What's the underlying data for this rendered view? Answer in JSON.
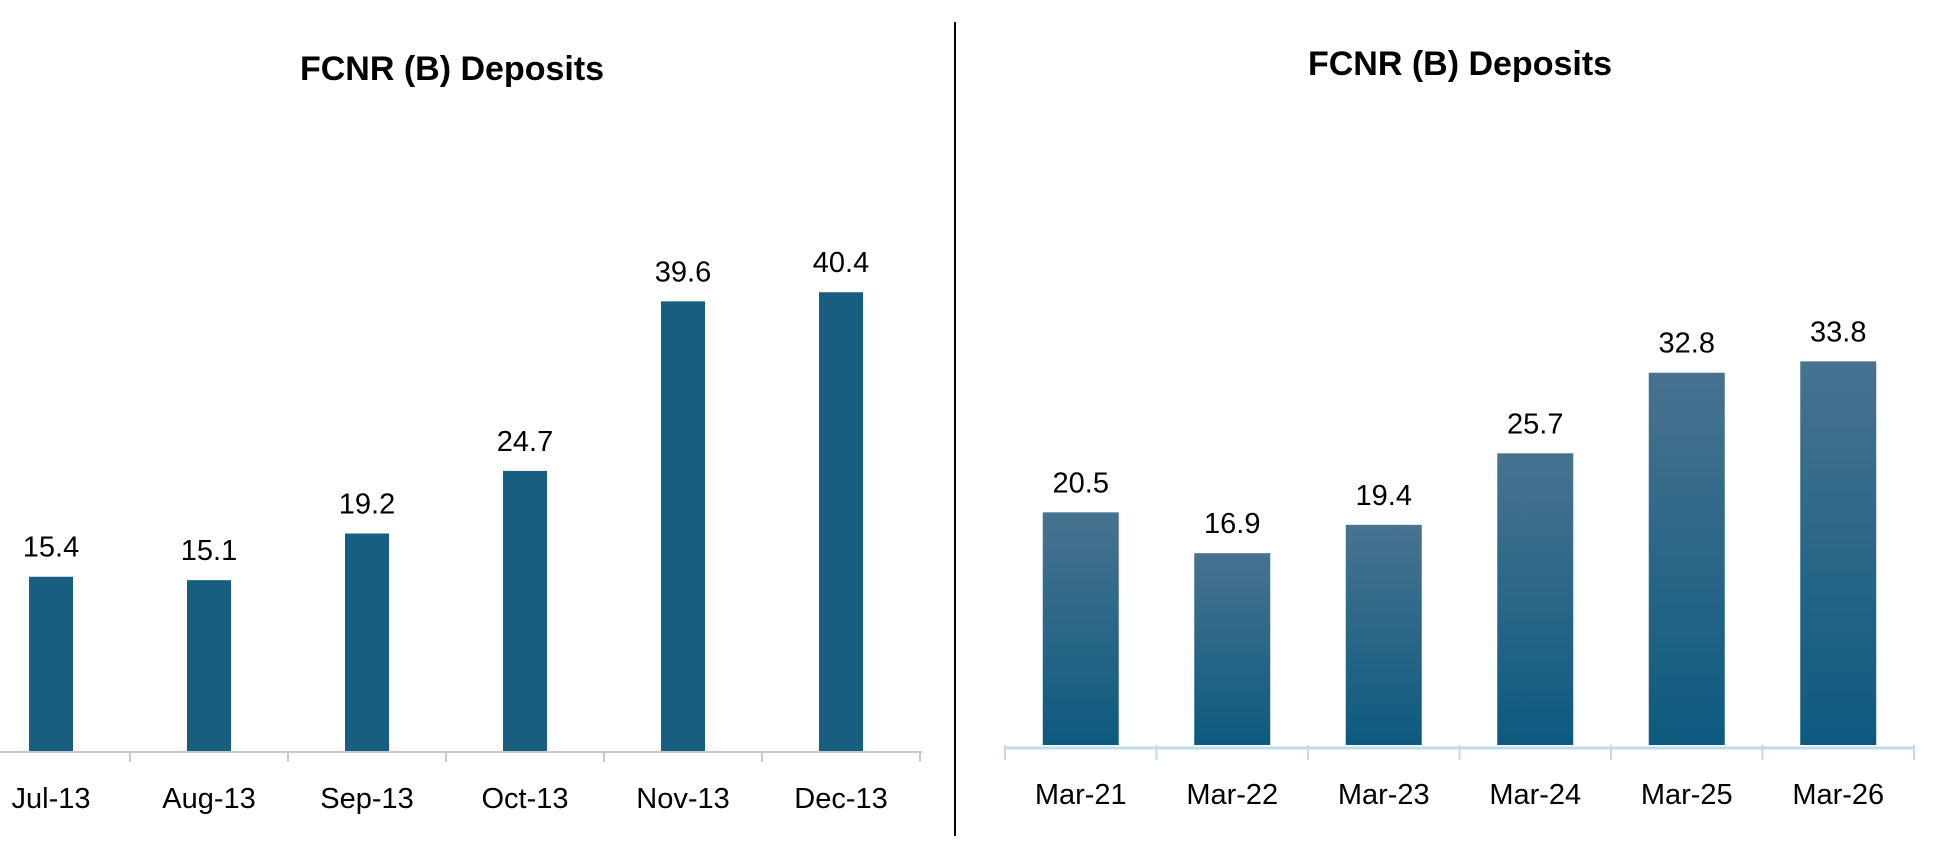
{
  "chart_data": [
    {
      "type": "bar",
      "title": "FCNR (B) Deposits",
      "categories": [
        "Jul-13",
        "Aug-13",
        "Sep-13",
        "Oct-13",
        "Nov-13",
        "Dec-13"
      ],
      "values": [
        15.4,
        15.1,
        19.2,
        24.7,
        39.6,
        40.4
      ],
      "data_labels": [
        "15.4",
        "15.1",
        "19.2",
        "24.7",
        "39.6",
        "40.4"
      ],
      "bar_color": "#175e80",
      "axis_color": "#c8c8c8",
      "grid": false,
      "legend": "none",
      "xlabel": "",
      "ylabel": ""
    },
    {
      "type": "bar",
      "title": "FCNR (B) Deposits",
      "categories": [
        "Mar-21",
        "Mar-22",
        "Mar-23",
        "Mar-24",
        "Mar-25",
        "Mar-26"
      ],
      "values": [
        20.5,
        16.9,
        19.4,
        25.7,
        32.8,
        33.8
      ],
      "data_labels": [
        "20.5",
        "16.9",
        "19.4",
        "25.7",
        "32.8",
        "33.8"
      ],
      "bar_gradient": [
        "#47738f",
        "#0d5a7f"
      ],
      "axis_color": "#bfdcef",
      "grid": false,
      "legend": "none",
      "xlabel": "",
      "ylabel": ""
    }
  ],
  "divider_color": "#000000"
}
